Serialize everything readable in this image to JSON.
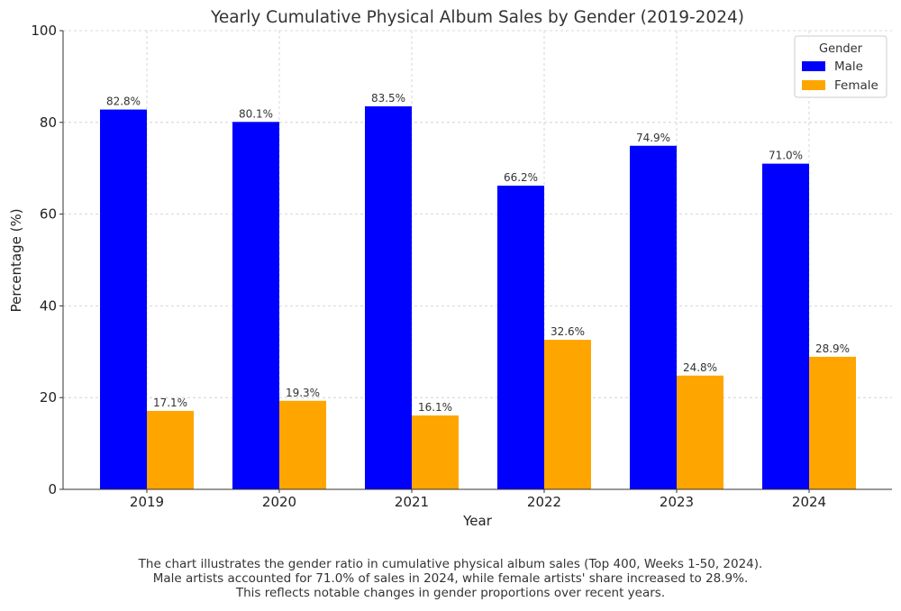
{
  "chart_data": {
    "type": "bar",
    "title": "Yearly Cumulative Physical Album Sales by Gender (2019-2024)",
    "xlabel": "Year",
    "ylabel": "Percentage (%)",
    "categories": [
      "2019",
      "2020",
      "2021",
      "2022",
      "2023",
      "2024"
    ],
    "series": [
      {
        "name": "Male",
        "color": "#0000ff",
        "values": [
          82.8,
          80.1,
          83.5,
          66.2,
          74.9,
          71.0
        ],
        "labels": [
          "82.8%",
          "80.1%",
          "83.5%",
          "66.2%",
          "74.9%",
          "71.0%"
        ]
      },
      {
        "name": "Female",
        "color": "#ffa500",
        "values": [
          17.1,
          19.3,
          16.1,
          32.6,
          24.8,
          28.9
        ],
        "labels": [
          "17.1%",
          "19.3%",
          "16.1%",
          "32.6%",
          "24.8%",
          "28.9%"
        ]
      }
    ],
    "ylim": [
      0,
      100
    ],
    "yticks": [
      "0",
      "20",
      "40",
      "60",
      "80",
      "100"
    ],
    "grid": true,
    "legend": {
      "title": "Gender",
      "position": "top-right"
    }
  },
  "caption": {
    "lines": [
      "The chart illustrates the gender ratio in cumulative physical album sales (Top 400, Weeks 1-50, 2024).",
      "Male artists accounted for 71.0% of sales in 2024, while female artists' share increased to 28.9%.",
      "This reflects notable changes in gender proportions over recent years."
    ]
  }
}
